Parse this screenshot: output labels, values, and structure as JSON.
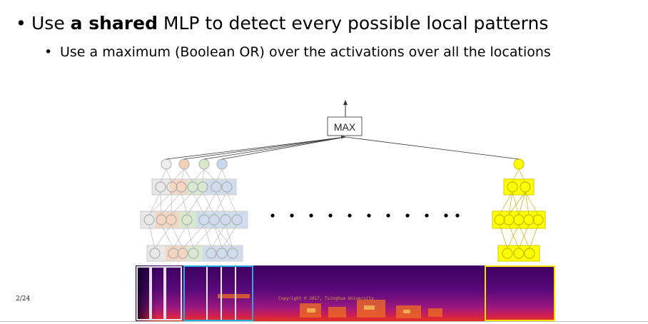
{
  "slide": {
    "bullet1": {
      "prefix": "Use ",
      "bold": "a shared",
      "suffix": " MLP to detect every possible local patterns"
    },
    "bullet2": "Use a maximum (Boolean OR) over the activations over all the locations",
    "page_number": "2/24"
  },
  "diagram": {
    "max_label": "MAX",
    "copyright": "Copyright © 2017, Tsinghua University",
    "colors": {
      "mlp_gray": "#d9d9d9",
      "mlp_peach": "#f5d0b5",
      "mlp_green": "#d5e8c8",
      "mlp_blue": "#c8d8ee",
      "yellow": "#ffff00",
      "yellow_border": "#d8c800",
      "window_blue": "#2aa8e0",
      "window_yellow": "#ffe000",
      "spectro_dark": "#1a0040",
      "spectro_mid": "#8a1090",
      "spectro_hot": "#e01030"
    }
  }
}
